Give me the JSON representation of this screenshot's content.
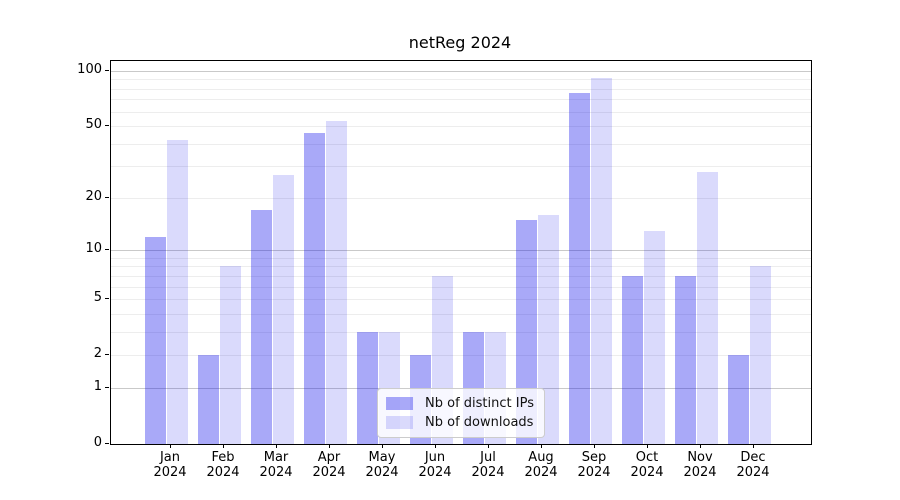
{
  "chart_data": {
    "type": "bar",
    "title": "netReg 2024",
    "categories": [
      "Jan",
      "Feb",
      "Mar",
      "Apr",
      "May",
      "Jun",
      "Jul",
      "Aug",
      "Sep",
      "Oct",
      "Nov",
      "Dec"
    ],
    "x_year_label": "2024",
    "series": [
      {
        "name": "Nb of distinct IPs",
        "color": "#0909eb59",
        "values": [
          12,
          2,
          17,
          46,
          3,
          2,
          3,
          15,
          76,
          7,
          7,
          2
        ]
      },
      {
        "name": "Nb of downloads",
        "color": "#0909eb26",
        "values": [
          42,
          8,
          27,
          53,
          3,
          7,
          3,
          16,
          91,
          13,
          28,
          8
        ]
      }
    ],
    "yscale": "log1p",
    "ylim": [
      0,
      113
    ],
    "yticks": [
      0,
      1,
      2,
      5,
      10,
      20,
      50,
      100
    ],
    "grid": {
      "major_values": [
        1,
        10,
        100
      ],
      "minor_values": [
        2,
        3,
        4,
        5,
        6,
        7,
        8,
        9,
        20,
        30,
        40,
        50,
        60,
        70,
        80,
        90
      ],
      "major_color": "#c9c9c9",
      "minor_color": "#ededed"
    },
    "legend_position": "lower center"
  }
}
